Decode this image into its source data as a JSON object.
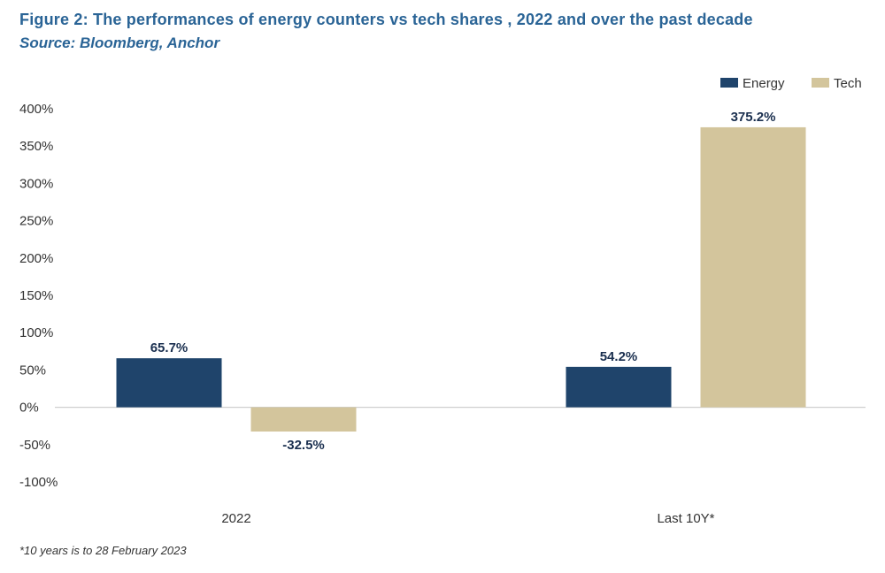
{
  "title": "Figure 2: The performances of energy counters vs tech shares , 2022 and over the past decade",
  "subtitle": "Source: Bloomberg, Anchor",
  "footnote": "*10 years is to 28 February 2023",
  "colors": {
    "energy": "#1f446b",
    "tech": "#d3c59c",
    "axis": "#cfcfcf",
    "label": "#1a2f4f"
  },
  "chart_data": {
    "type": "bar",
    "categories": [
      "2022",
      "Last 10Y*"
    ],
    "series": [
      {
        "name": "Energy",
        "values": [
          65.7,
          54.2
        ],
        "labels": [
          "65.7%",
          "54.2%"
        ]
      },
      {
        "name": "Tech",
        "values": [
          -32.5,
          375.2
        ],
        "labels": [
          "-32.5%",
          "375.2%"
        ]
      }
    ],
    "ylim": [
      -100,
      400
    ],
    "yticks": [
      400,
      350,
      300,
      250,
      200,
      150,
      100,
      50,
      0,
      -50,
      -100
    ],
    "ytick_labels": [
      "400%",
      "350%",
      "300%",
      "250%",
      "200%",
      "150%",
      "100%",
      "50%",
      "0%",
      "-50%",
      "-100%"
    ],
    "legend": [
      "Energy",
      "Tech"
    ],
    "legend_position": "top-right",
    "xlabel": "",
    "ylabel": ""
  }
}
